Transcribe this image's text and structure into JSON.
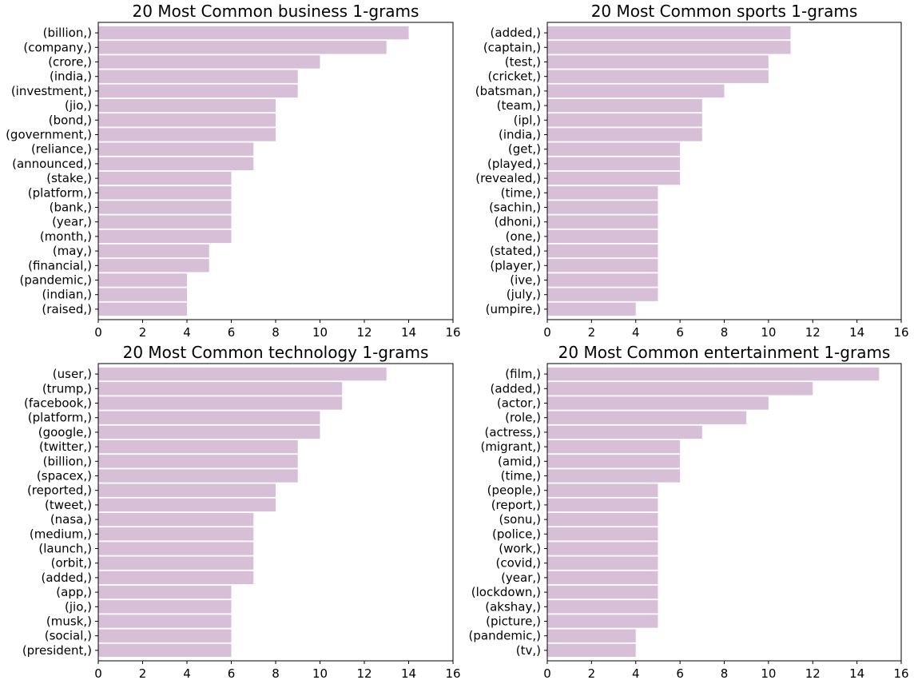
{
  "colors": {
    "bar": "#d8bfd8",
    "axis": "#000000",
    "background": "#ffffff"
  },
  "chart_data": [
    {
      "type": "bar",
      "orientation": "horizontal",
      "title": "20 Most Common business 1-grams",
      "categories": [
        "(billion,)",
        "(company,)",
        "(crore,)",
        "(india,)",
        "(investment,)",
        "(jio,)",
        "(bond,)",
        "(government,)",
        "(reliance,)",
        "(announced,)",
        "(stake,)",
        "(platform,)",
        "(bank,)",
        "(year,)",
        "(month,)",
        "(may,)",
        "(financial,)",
        "(pandemic,)",
        "(indian,)",
        "(raised,)"
      ],
      "values": [
        14,
        13,
        10,
        9,
        9,
        8,
        8,
        8,
        7,
        7,
        6,
        6,
        6,
        6,
        6,
        5,
        5,
        4,
        4,
        4
      ],
      "xlim": [
        0,
        16
      ],
      "xticks": [
        "0",
        "2",
        "4",
        "6",
        "8",
        "10",
        "12",
        "14",
        "16"
      ],
      "grid": false,
      "legend": "none"
    },
    {
      "type": "bar",
      "orientation": "horizontal",
      "title": "20 Most Common sports 1-grams",
      "categories": [
        "(added,)",
        "(captain,)",
        "(test,)",
        "(cricket,)",
        "(batsman,)",
        "(team,)",
        "(ipl,)",
        "(india,)",
        "(get,)",
        "(played,)",
        "(revealed,)",
        "(time,)",
        "(sachin,)",
        "(dhoni,)",
        "(one,)",
        "(stated,)",
        "(player,)",
        "(ive,)",
        "(july,)",
        "(umpire,)"
      ],
      "values": [
        11,
        11,
        10,
        10,
        8,
        7,
        7,
        7,
        6,
        6,
        6,
        5,
        5,
        5,
        5,
        5,
        5,
        5,
        5,
        4
      ],
      "xlim": [
        0,
        16
      ],
      "xticks": [
        "0",
        "2",
        "4",
        "6",
        "8",
        "10",
        "12",
        "14",
        "16"
      ],
      "grid": false,
      "legend": "none"
    },
    {
      "type": "bar",
      "orientation": "horizontal",
      "title": "20 Most Common technology 1-grams",
      "categories": [
        "(user,)",
        "(trump,)",
        "(facebook,)",
        "(platform,)",
        "(google,)",
        "(twitter,)",
        "(billion,)",
        "(spacex,)",
        "(reported,)",
        "(tweet,)",
        "(nasa,)",
        "(medium,)",
        "(launch,)",
        "(orbit,)",
        "(added,)",
        "(app,)",
        "(jio,)",
        "(musk,)",
        "(social,)",
        "(president,)"
      ],
      "values": [
        13,
        11,
        11,
        10,
        10,
        9,
        9,
        9,
        8,
        8,
        7,
        7,
        7,
        7,
        7,
        6,
        6,
        6,
        6,
        6
      ],
      "xlim": [
        0,
        16
      ],
      "xticks": [
        "0",
        "2",
        "4",
        "6",
        "8",
        "10",
        "12",
        "14",
        "16"
      ],
      "grid": false,
      "legend": "none"
    },
    {
      "type": "bar",
      "orientation": "horizontal",
      "title": "20 Most Common entertainment 1-grams",
      "categories": [
        "(film,)",
        "(added,)",
        "(actor,)",
        "(role,)",
        "(actress,)",
        "(migrant,)",
        "(amid,)",
        "(time,)",
        "(people,)",
        "(report,)",
        "(sonu,)",
        "(police,)",
        "(work,)",
        "(covid,)",
        "(year,)",
        "(lockdown,)",
        "(akshay,)",
        "(picture,)",
        "(pandemic,)",
        "(tv,)"
      ],
      "values": [
        15,
        12,
        10,
        9,
        7,
        6,
        6,
        6,
        5,
        5,
        5,
        5,
        5,
        5,
        5,
        5,
        5,
        5,
        4,
        4
      ],
      "xlim": [
        0,
        16
      ],
      "xticks": [
        "0",
        "2",
        "4",
        "6",
        "8",
        "10",
        "12",
        "14",
        "16"
      ],
      "grid": false,
      "legend": "none"
    }
  ]
}
